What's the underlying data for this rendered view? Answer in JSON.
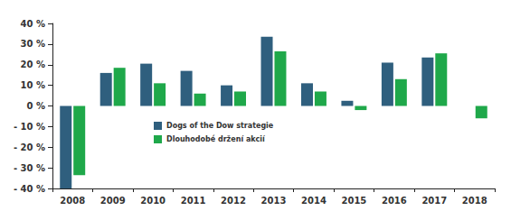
{
  "chart_data": {
    "type": "bar",
    "categories": [
      "2008",
      "2009",
      "2010",
      "2011",
      "2012",
      "2013",
      "2014",
      "2015",
      "2016",
      "2017",
      "2018"
    ],
    "series": [
      {
        "name": "Dogs of the Dow strategie",
        "color": "#2f5f7e",
        "values": [
          -40,
          16,
          20.5,
          17,
          10,
          33.5,
          11,
          2.5,
          21,
          23.5,
          null
        ]
      },
      {
        "name": "Dlouhodobé držení akcií",
        "color": "#1fa84a",
        "values": [
          -33.5,
          18.5,
          11,
          6,
          7,
          26.5,
          7,
          -2,
          13,
          25.5,
          -6
        ]
      }
    ],
    "ylim": [
      -40,
      40
    ],
    "yticks": [
      {
        "value": -40,
        "label": "- 40 %"
      },
      {
        "value": -30,
        "label": "- 30 %"
      },
      {
        "value": -20,
        "label": "- 20 %"
      },
      {
        "value": -10,
        "label": "- 10 %"
      },
      {
        "value": 0,
        "label": "0 %"
      },
      {
        "value": 10,
        "label": "10 %"
      },
      {
        "value": 20,
        "label": "20 %"
      },
      {
        "value": 30,
        "label": "30 %"
      },
      {
        "value": 40,
        "label": "40 %"
      }
    ],
    "grid": false,
    "legend": "lower left"
  }
}
